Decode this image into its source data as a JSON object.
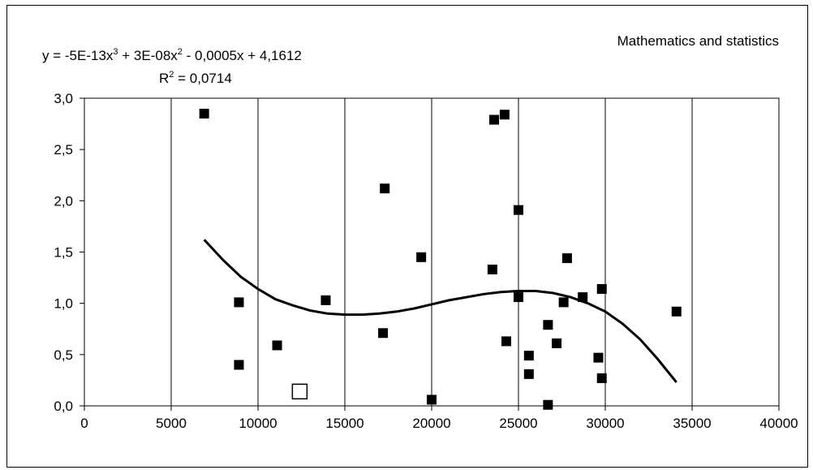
{
  "chart_data": {
    "type": "scatter",
    "title": "Mathematics and statistics",
    "equation": {
      "parts": [
        "y = -5E-13x",
        "3",
        " + 3E-08x",
        "2",
        " - 0,0005x + 4,1612"
      ],
      "r2_prefix": "R",
      "r2_sup": "2",
      "r2_value": " = 0,0714"
    },
    "xlim": [
      0,
      40000
    ],
    "ylim": [
      0,
      3.0
    ],
    "x_ticks": [
      0,
      5000,
      10000,
      15000,
      20000,
      25000,
      30000,
      35000,
      40000
    ],
    "x_tick_labels": [
      "0",
      "5000",
      "10000",
      "15000",
      "20000",
      "25000",
      "30000",
      "35000",
      "40000"
    ],
    "y_ticks": [
      0,
      0.5,
      1.0,
      1.5,
      2.0,
      2.5,
      3.0
    ],
    "y_tick_labels": [
      "0,0",
      "0,5",
      "1,0",
      "1,5",
      "2,0",
      "2,5",
      "3,0"
    ],
    "grid": {
      "vertical": true,
      "horizontal": false
    },
    "series": [
      {
        "marker": "filled-square",
        "color": "#000000",
        "points": [
          {
            "x": 6900,
            "y": 2.85
          },
          {
            "x": 8900,
            "y": 1.01
          },
          {
            "x": 8900,
            "y": 0.4
          },
          {
            "x": 11100,
            "y": 0.59
          },
          {
            "x": 13900,
            "y": 1.03
          },
          {
            "x": 17200,
            "y": 0.71
          },
          {
            "x": 17300,
            "y": 2.12
          },
          {
            "x": 19400,
            "y": 1.45
          },
          {
            "x": 20000,
            "y": 0.06
          },
          {
            "x": 23500,
            "y": 1.33
          },
          {
            "x": 23600,
            "y": 2.79
          },
          {
            "x": 24200,
            "y": 2.84
          },
          {
            "x": 24300,
            "y": 0.63
          },
          {
            "x": 25000,
            "y": 1.91
          },
          {
            "x": 25000,
            "y": 1.06
          },
          {
            "x": 25600,
            "y": 0.49
          },
          {
            "x": 25600,
            "y": 0.31
          },
          {
            "x": 26700,
            "y": 0.79
          },
          {
            "x": 26700,
            "y": 0.01
          },
          {
            "x": 27200,
            "y": 0.61
          },
          {
            "x": 27600,
            "y": 1.01
          },
          {
            "x": 27800,
            "y": 1.44
          },
          {
            "x": 28700,
            "y": 1.06
          },
          {
            "x": 29600,
            "y": 0.47
          },
          {
            "x": 29800,
            "y": 1.14
          },
          {
            "x": 29800,
            "y": 0.27
          },
          {
            "x": 34100,
            "y": 0.92
          }
        ]
      },
      {
        "marker": "open-square",
        "color": "#000000",
        "points": [
          {
            "x": 12400,
            "y": 0.14
          }
        ]
      }
    ],
    "trendline": {
      "type": "polynomial",
      "coefficients": [
        -5e-13,
        3e-08,
        -0.0005,
        4.1612
      ],
      "x_range": [
        6900,
        34100
      ],
      "points": [
        {
          "x": 6900,
          "y": 1.62
        },
        {
          "x": 8000,
          "y": 1.42
        },
        {
          "x": 9000,
          "y": 1.26
        },
        {
          "x": 10000,
          "y": 1.14
        },
        {
          "x": 11000,
          "y": 1.04
        },
        {
          "x": 12000,
          "y": 0.98
        },
        {
          "x": 13000,
          "y": 0.93
        },
        {
          "x": 14000,
          "y": 0.9
        },
        {
          "x": 15000,
          "y": 0.89
        },
        {
          "x": 16000,
          "y": 0.89
        },
        {
          "x": 17000,
          "y": 0.9
        },
        {
          "x": 18000,
          "y": 0.92
        },
        {
          "x": 19000,
          "y": 0.95
        },
        {
          "x": 20000,
          "y": 0.99
        },
        {
          "x": 21000,
          "y": 1.03
        },
        {
          "x": 22000,
          "y": 1.06
        },
        {
          "x": 23000,
          "y": 1.09
        },
        {
          "x": 24000,
          "y": 1.11
        },
        {
          "x": 25000,
          "y": 1.12
        },
        {
          "x": 26000,
          "y": 1.12
        },
        {
          "x": 27000,
          "y": 1.1
        },
        {
          "x": 28000,
          "y": 1.06
        },
        {
          "x": 29000,
          "y": 1.0
        },
        {
          "x": 30000,
          "y": 0.92
        },
        {
          "x": 31000,
          "y": 0.8
        },
        {
          "x": 32000,
          "y": 0.65
        },
        {
          "x": 33000,
          "y": 0.46
        },
        {
          "x": 34100,
          "y": 0.23
        }
      ]
    }
  }
}
